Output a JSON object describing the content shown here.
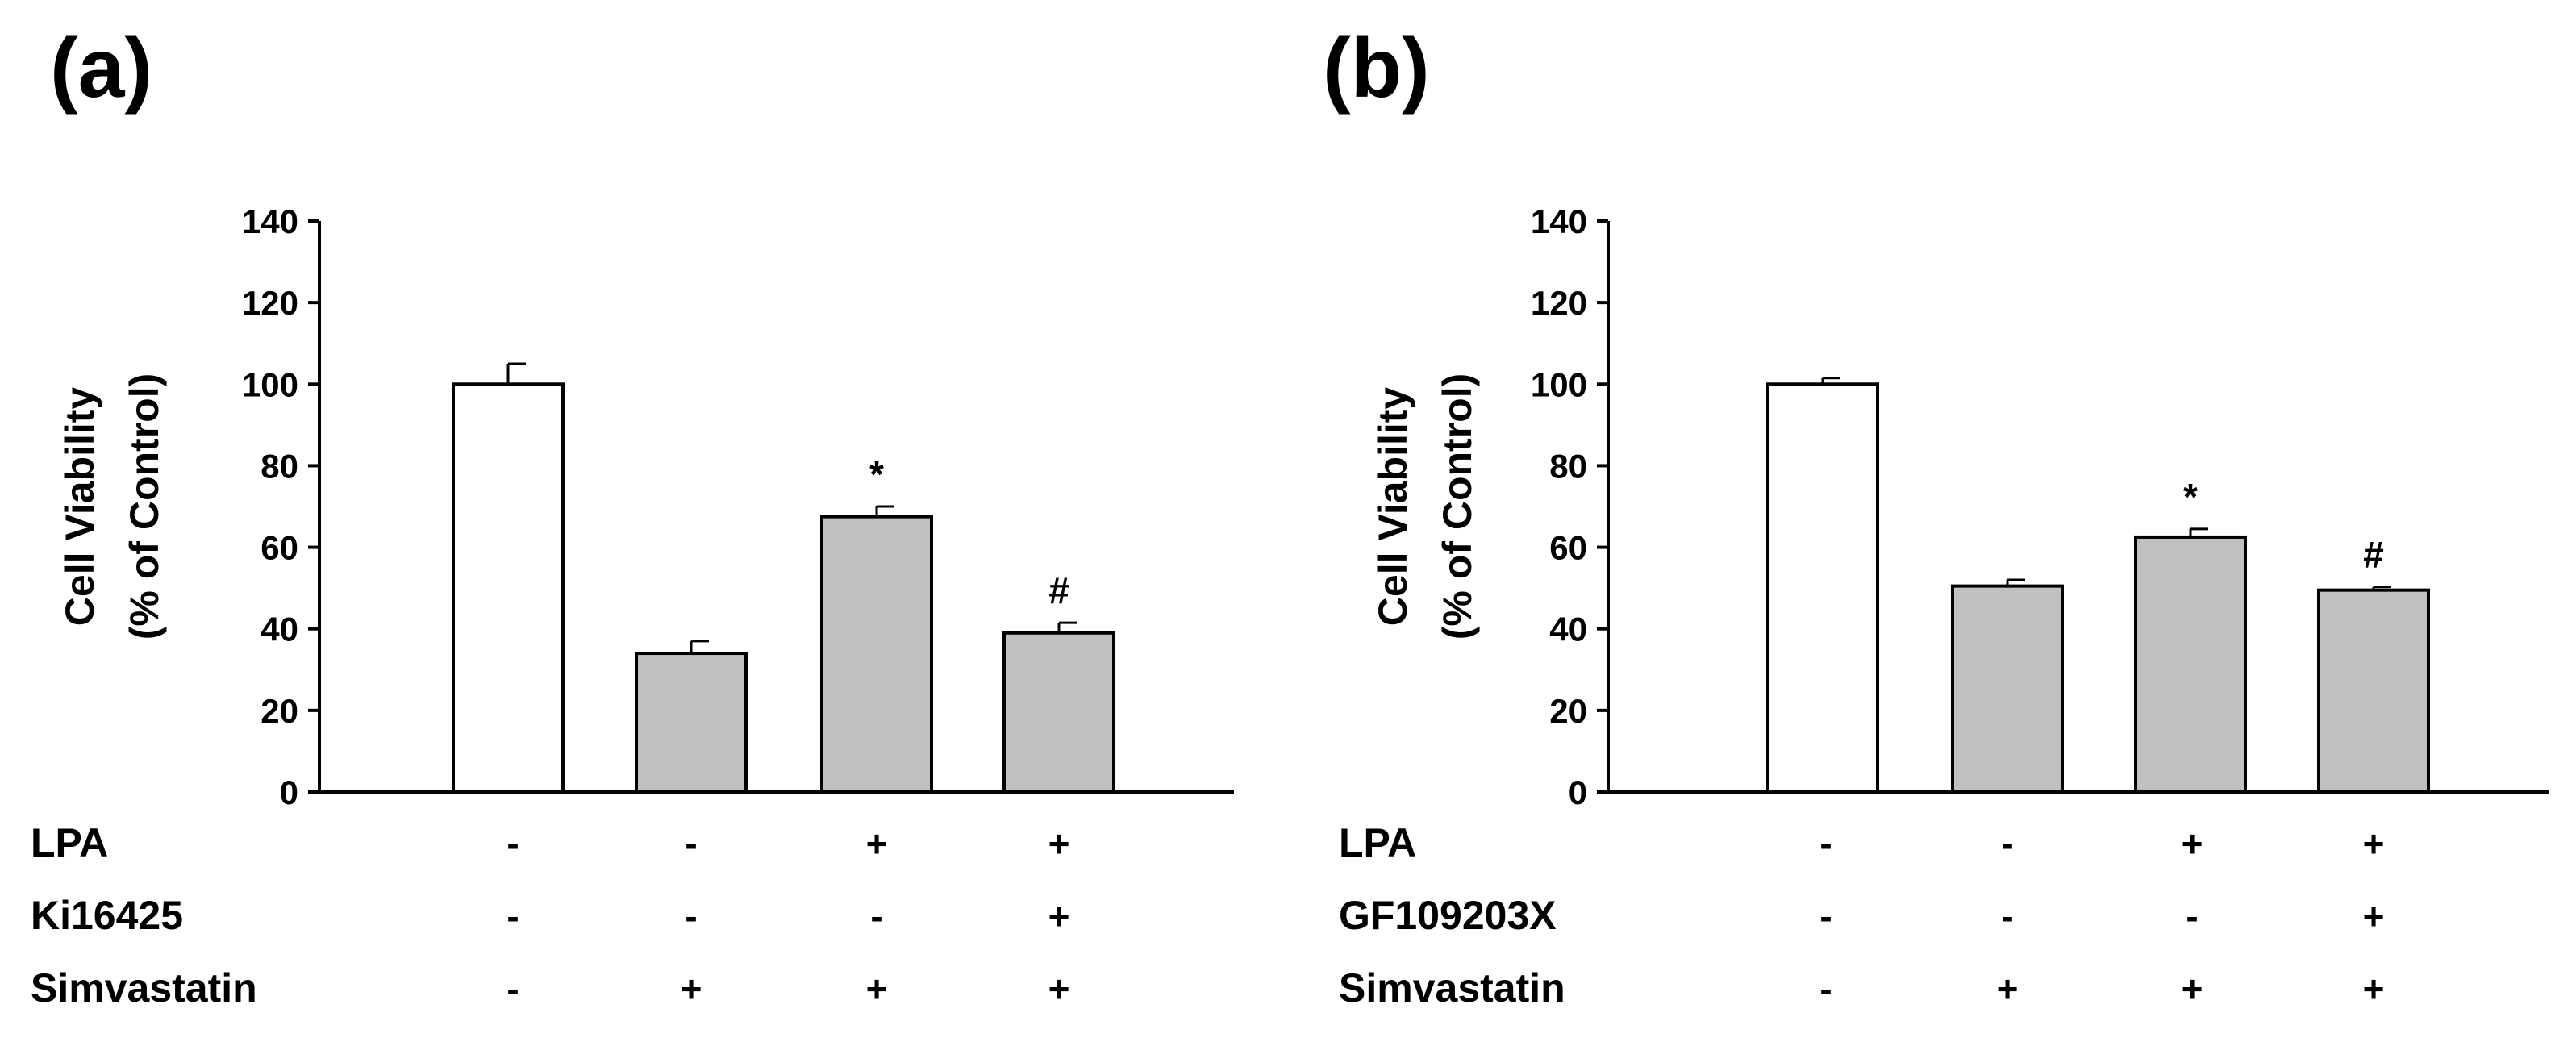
{
  "panels": [
    {
      "label": "(a)",
      "chart_data": {
        "type": "bar",
        "ylabel_line1": "Cell Viability",
        "ylabel_line2": "(% of Control)",
        "ylim": [
          0,
          140
        ],
        "yticks": [
          "0",
          "20",
          "40",
          "60",
          "80",
          "100",
          "120",
          "140"
        ],
        "bars": [
          {
            "value": 100,
            "error": 5,
            "fill": "#ffffff",
            "marker": ""
          },
          {
            "value": 34,
            "error": 3,
            "fill": "#c0c0c0",
            "marker": ""
          },
          {
            "value": 67.5,
            "error": 2.5,
            "fill": "#c0c0c0",
            "marker": "*"
          },
          {
            "value": 39,
            "error": 2.5,
            "fill": "#c0c0c0",
            "marker": "#"
          }
        ],
        "treatments": [
          {
            "name": "LPA",
            "signs": [
              "-",
              "-",
              "+",
              "+"
            ]
          },
          {
            "name": "Ki16425",
            "signs": [
              "-",
              "-",
              "-",
              "+"
            ]
          },
          {
            "name": "Simvastatin",
            "signs": [
              "-",
              "+",
              "+",
              "+"
            ]
          }
        ]
      }
    },
    {
      "label": "(b)",
      "chart_data": {
        "type": "bar",
        "ylabel_line1": "Cell Viability",
        "ylabel_line2": "(% of Control)",
        "ylim": [
          0,
          140
        ],
        "yticks": [
          "0",
          "20",
          "40",
          "60",
          "80",
          "100",
          "120",
          "140"
        ],
        "bars": [
          {
            "value": 100,
            "error": 1.5,
            "fill": "#ffffff",
            "marker": ""
          },
          {
            "value": 50.5,
            "error": 1.5,
            "fill": "#c0c0c0",
            "marker": ""
          },
          {
            "value": 62.5,
            "error": 2,
            "fill": "#c0c0c0",
            "marker": "*"
          },
          {
            "value": 49.5,
            "error": 0.8,
            "fill": "#c0c0c0",
            "marker": "#"
          }
        ],
        "treatments": [
          {
            "name": "LPA",
            "signs": [
              "-",
              "-",
              "+",
              "+"
            ]
          },
          {
            "name": "GF109203X",
            "signs": [
              "-",
              "-",
              "-",
              "+"
            ]
          },
          {
            "name": "Simvastatin",
            "signs": [
              "-",
              "+",
              "+",
              "+"
            ]
          }
        ]
      }
    }
  ]
}
